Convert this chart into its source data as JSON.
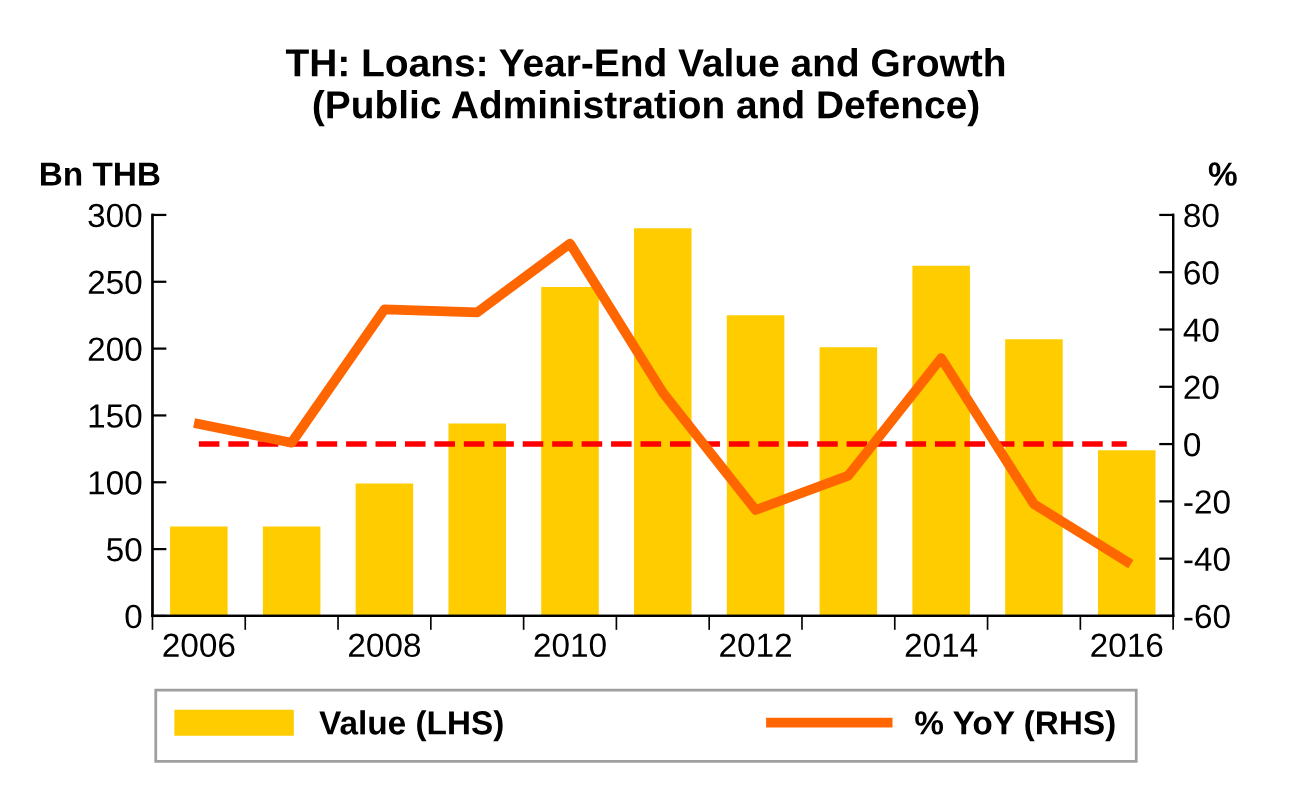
{
  "chart_data": {
    "type": "bar",
    "title": "TH: Loans: Year-End Value and Growth\n(Public Administration and Defence)",
    "ylabel": "Bn THB",
    "y2label": "%",
    "categories": [
      "2006",
      null,
      "2008",
      null,
      "2010",
      null,
      "2012",
      null,
      "2014",
      null,
      "2016"
    ],
    "series": [
      {
        "name": "Value (LHS)",
        "color": "#ffcc00",
        "values": [
          67,
          67,
          99,
          144,
          246,
          290,
          225,
          201,
          262,
          207,
          124
        ]
      },
      {
        "name": "% YoY (RHS)",
        "type": "line",
        "axis": "y2",
        "color": "#ff6600",
        "values": [
          7,
          0.5,
          47,
          46,
          70,
          18,
          -23,
          -11,
          30,
          -21,
          -41
        ]
      }
    ],
    "ylim": [
      0,
      300
    ],
    "yticks": [
      0,
      50,
      100,
      150,
      200,
      250,
      300
    ],
    "y2lim": [
      -60,
      80
    ],
    "y2ticks": [
      -60,
      -40,
      -20,
      0,
      20,
      40,
      60,
      80
    ],
    "ref_lines": [
      {
        "axis": "y2",
        "value": 0,
        "color": "#ff0000",
        "line_style": "dashed"
      }
    ],
    "legend": "bottom",
    "grid": false,
    "marker": "none",
    "line_style": "solid"
  }
}
